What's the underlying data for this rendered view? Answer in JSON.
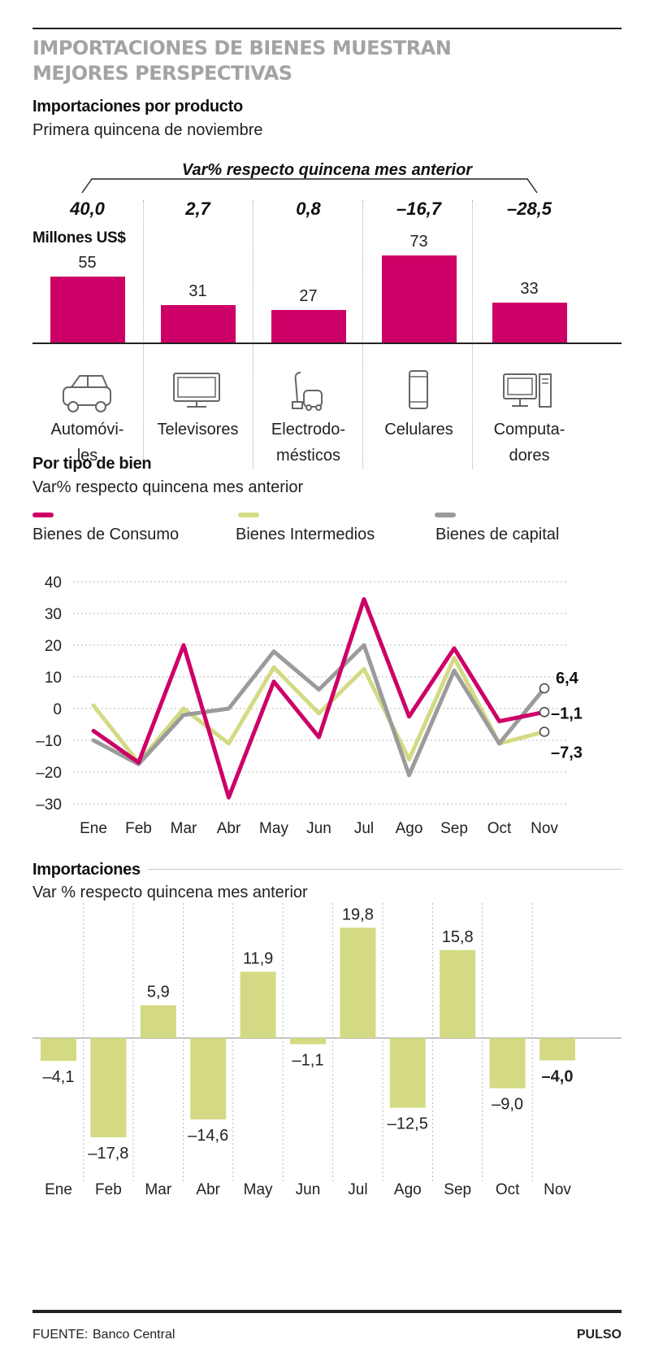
{
  "header": {
    "title_line1": "IMPORTACIONES DE BIENES MUESTRAN",
    "title_line2": "MEJORES PERSPECTIVAS"
  },
  "products": {
    "heading": "Importaciones por producto",
    "subheading": "Primera quincena de noviembre",
    "var_label": "Var% respecto quincena mes anterior",
    "unit_label": "Millones US$",
    "bar_color": "#cc0066",
    "items": [
      {
        "var": "40,0",
        "value": 55,
        "label1": "Automóvi-",
        "label2": "les",
        "icon": "car-icon"
      },
      {
        "var": "2,7",
        "value": 31,
        "label1": "Televisores",
        "label2": "",
        "icon": "tv-icon"
      },
      {
        "var": "0,8",
        "value": 27,
        "label1": "Electrodo-",
        "label2": "mésticos",
        "icon": "vacuum-icon"
      },
      {
        "var": "-16,7",
        "value": 73,
        "label1": "Celulares",
        "label2": "",
        "icon": "phone-icon"
      },
      {
        "var": "-28,5",
        "value": 33,
        "label1": "Computa-",
        "label2": "dores",
        "icon": "computer-icon"
      }
    ]
  },
  "by_type": {
    "heading": "Por tipo de bien",
    "subheading": "Var% respecto quincena mes anterior",
    "legend": {
      "consumo": "Bienes de Consumo",
      "intermedios": "Bienes Intermedios",
      "capital": "Bienes de capital"
    }
  },
  "imports": {
    "heading": "Importaciones",
    "subheading": "Var % respecto quincena mes anterior"
  },
  "footer": {
    "source_prefix": "FUENTE:",
    "source": "Banco Central",
    "brand": "PULSO"
  },
  "chart_data": [
    {
      "type": "bar",
      "title": "Importaciones por producto",
      "ylabel": "Millones US$",
      "categories": [
        "Automóviles",
        "Televisores",
        "Electrodomésticos",
        "Celulares",
        "Computadores"
      ],
      "values": [
        55,
        31,
        27,
        73,
        33
      ],
      "annotations": [
        "40,0",
        "2,7",
        "0,8",
        "-16,7",
        "-28,5"
      ],
      "color": "#cc0066"
    },
    {
      "type": "line",
      "title": "Por tipo de bien",
      "x": [
        "Ene",
        "Feb",
        "Mar",
        "Abr",
        "May",
        "Jun",
        "Jul",
        "Ago",
        "Sep",
        "Oct",
        "Nov"
      ],
      "yticks": [
        "40",
        "30",
        "20",
        "10",
        "0",
        "-10",
        "-20",
        "-30"
      ],
      "ylim": [
        -30,
        40
      ],
      "grid": true,
      "series": [
        {
          "name": "Bienes Intermedios",
          "color": "#d4da84",
          "values": [
            1,
            -17,
            0,
            -11,
            13,
            -1.5,
            12.5,
            -16,
            16,
            -11,
            -7.3
          ]
        },
        {
          "name": "Bienes de capital",
          "color": "#9b9b9b",
          "values": [
            -10,
            -17.5,
            -2,
            0,
            18,
            6,
            20,
            -21,
            12,
            -11,
            6.4
          ]
        },
        {
          "name": "Bienes de Consumo",
          "color": "#cc0066",
          "values": [
            -7,
            -17,
            20,
            -28,
            8.5,
            -9,
            34.5,
            -2.5,
            19,
            -4,
            -1.1
          ]
        }
      ],
      "end_labels": [
        {
          "series": "Bienes de capital",
          "text": "6,4"
        },
        {
          "series": "Bienes de Consumo",
          "text": "-1,1"
        },
        {
          "series": "Bienes Intermedios",
          "text": "-7,3"
        }
      ]
    },
    {
      "type": "bar",
      "title": "Importaciones",
      "categories": [
        "Ene",
        "Feb",
        "Mar",
        "Abr",
        "May",
        "Jun",
        "Jul",
        "Ago",
        "Sep",
        "Oct",
        "Nov"
      ],
      "values": [
        -4.1,
        -17.8,
        5.9,
        -14.6,
        11.9,
        -1.1,
        19.8,
        -12.5,
        15.8,
        -9.0,
        -4.0
      ],
      "labels": [
        "-4,1",
        "-17,8",
        "5,9",
        "-14,6",
        "11,9",
        "-1,1",
        "19,8",
        "-12,5",
        "15,8",
        "-9,0",
        "-4,0"
      ],
      "color": "#d4da84"
    }
  ]
}
